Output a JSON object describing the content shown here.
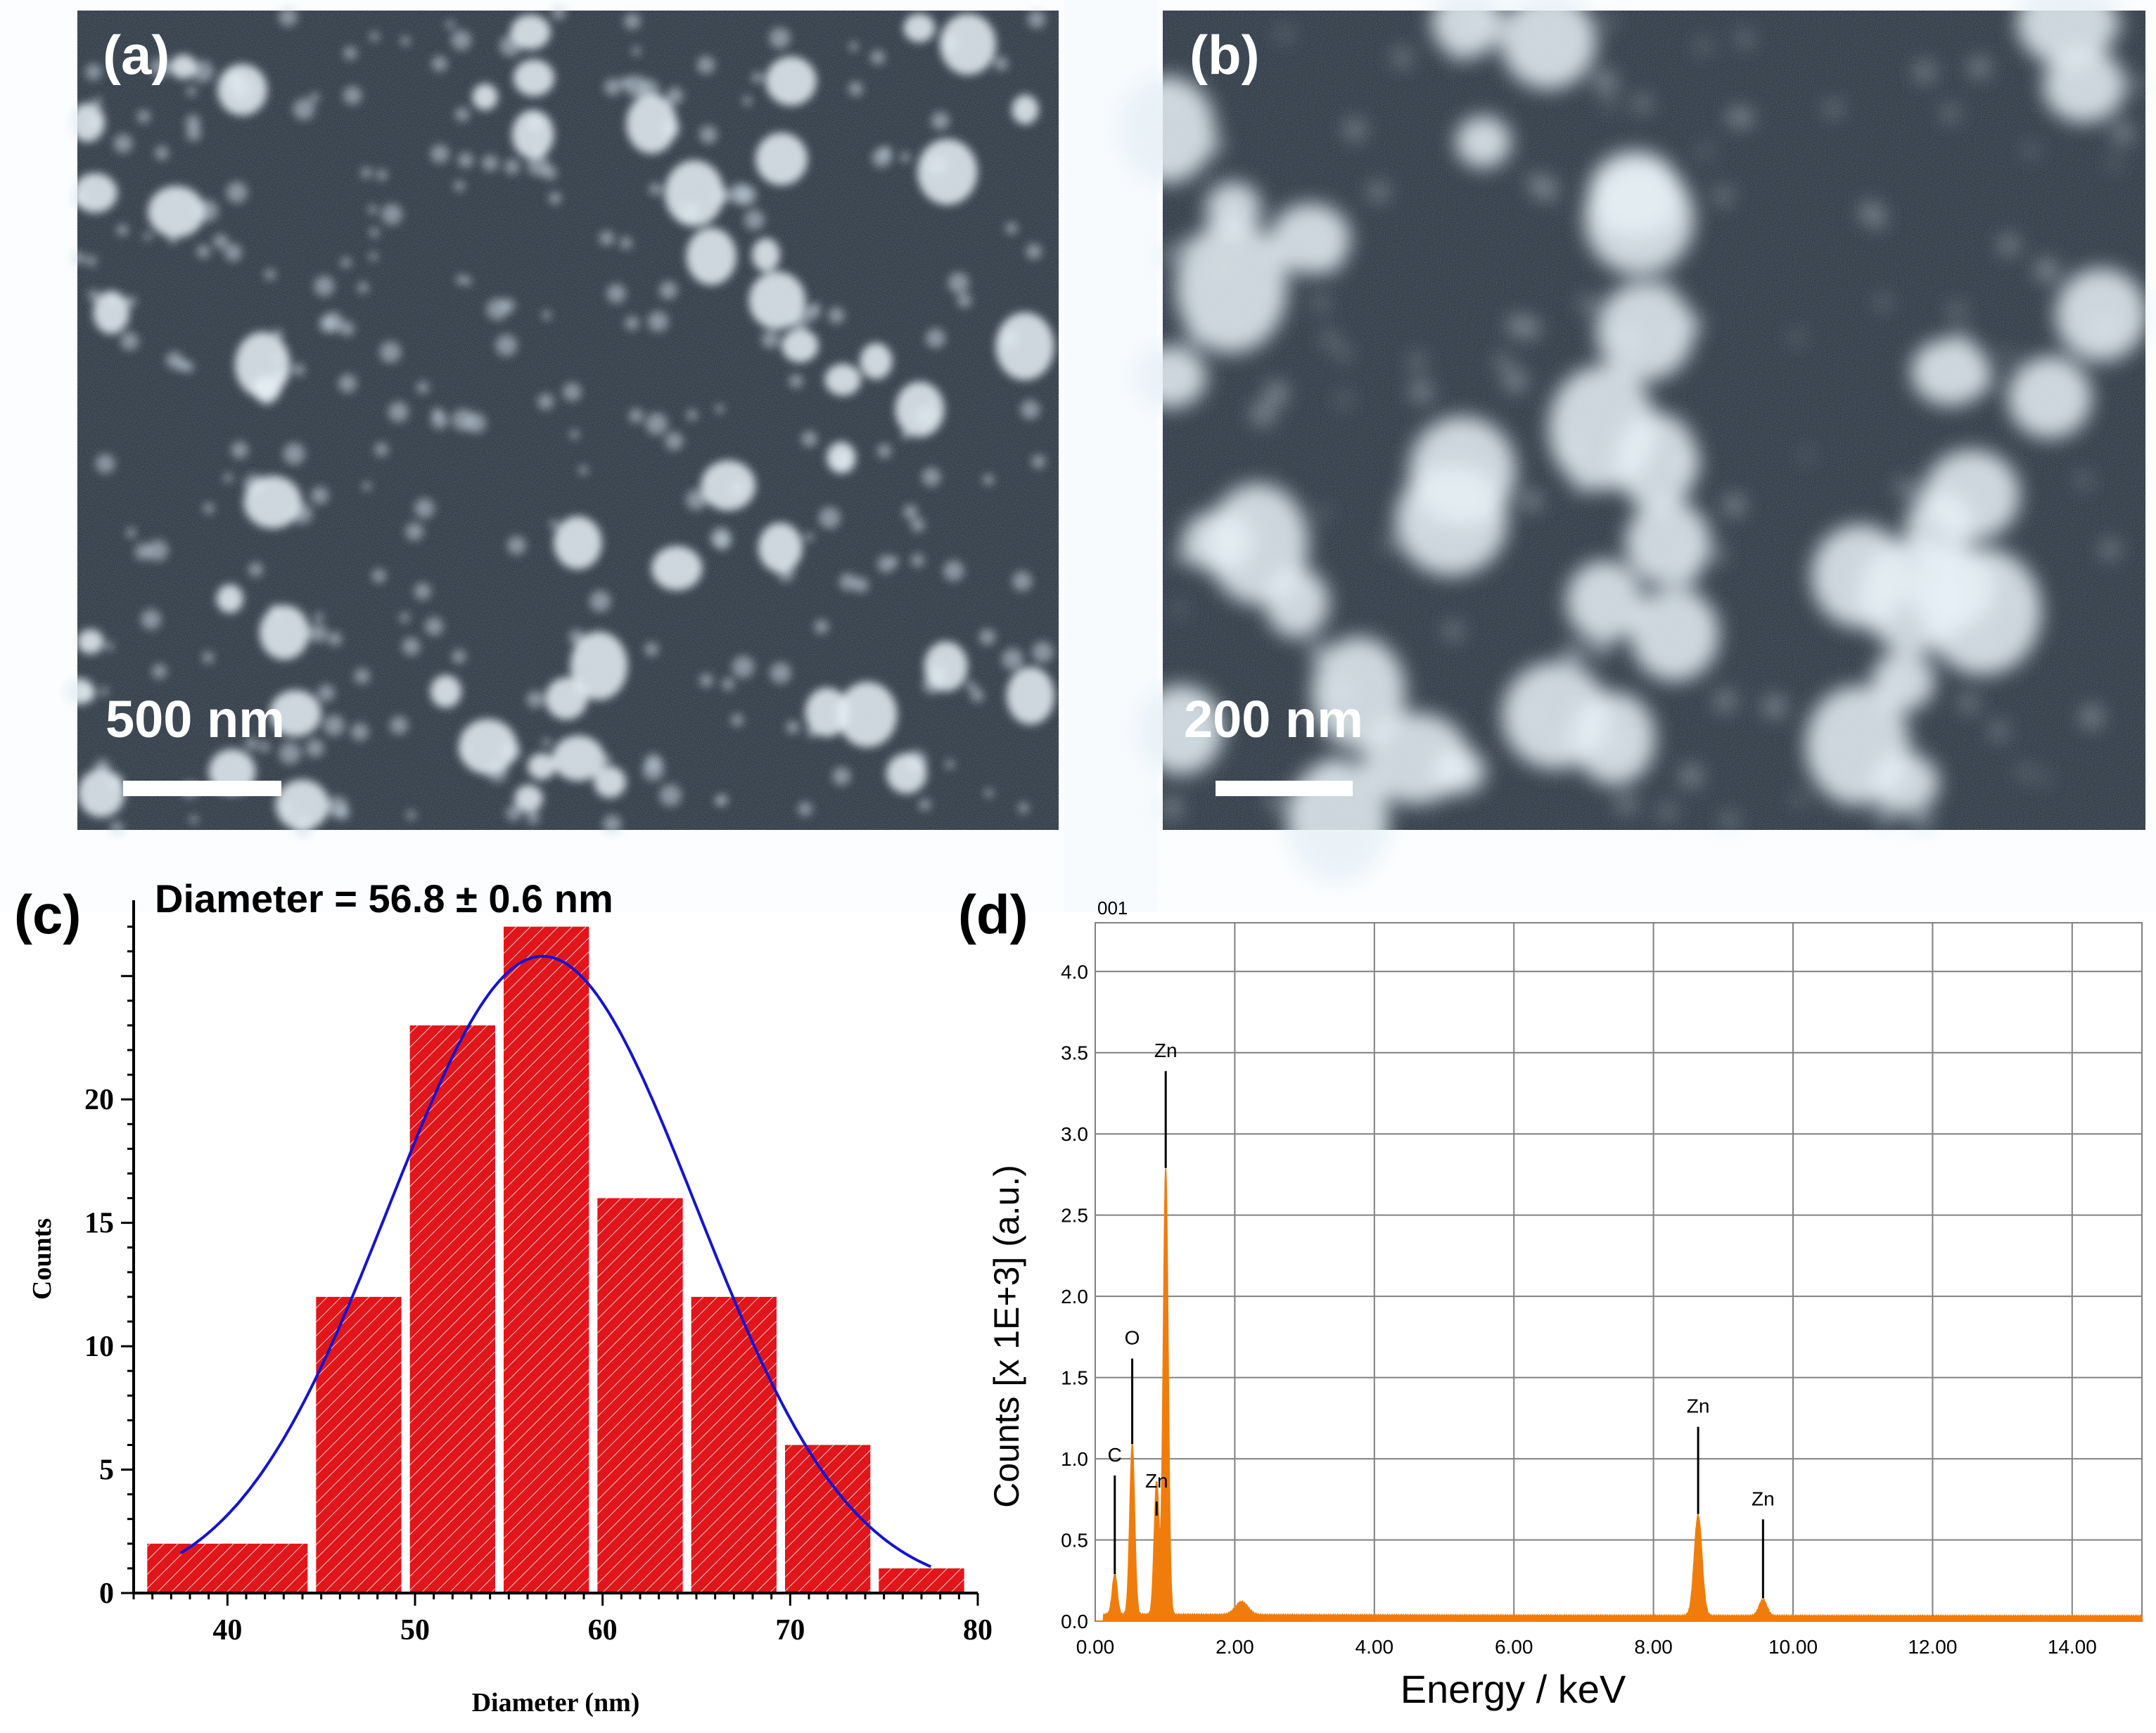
{
  "panels": {
    "a": {
      "letter": "(a)",
      "scale": "500 nm"
    },
    "b": {
      "letter": "(b)",
      "scale": "200 nm"
    },
    "c": {
      "letter": "(c)"
    },
    "d": {
      "letter": "(d)"
    }
  },
  "colors": {
    "sem_bg": "#1a2430",
    "sem_particle": "#e6f0f6",
    "hist_bar": "#e0161b",
    "fit_curve": "#1414d2",
    "eds_spectrum": "#f07c0c",
    "grid": "#808080"
  },
  "chart_data": [
    {
      "type": "bar",
      "panel": "c",
      "title": "Diameter = 56.8 ± 0.6 nm",
      "xlabel": "Diameter (nm)",
      "ylabel": "Counts",
      "xlim": [
        35,
        80
      ],
      "ylim": [
        0,
        27.5
      ],
      "x_ticks": [
        "40",
        "50",
        "60",
        "70",
        "80"
      ],
      "y_ticks": [
        "0",
        "5",
        "10",
        "15",
        "20"
      ],
      "bin_width": 5,
      "bins": [
        {
          "center": 38,
          "value": 2
        },
        {
          "center": 42,
          "value": 2
        },
        {
          "center": 47,
          "value": 12
        },
        {
          "center": 52,
          "value": 23
        },
        {
          "center": 57,
          "value": 27
        },
        {
          "center": 62,
          "value": 16
        },
        {
          "center": 67,
          "value": 12
        },
        {
          "center": 72,
          "value": 6
        },
        {
          "center": 77,
          "value": 1
        }
      ],
      "fit": {
        "type": "gaussian",
        "mean": 56.8,
        "peak": 25.8,
        "sigma": 8.2,
        "x_range": [
          37.5,
          77.5
        ]
      }
    },
    {
      "type": "line",
      "panel": "d",
      "header": "001",
      "xlabel": "Energy / keV",
      "ylabel": "Counts [x 1E+3] (a.u.)",
      "xlim": [
        0,
        15
      ],
      "ylim": [
        0,
        4.3
      ],
      "x_ticks": [
        "0.00",
        "2.00",
        "4.00",
        "6.00",
        "8.00",
        "10.00",
        "12.00",
        "14.00"
      ],
      "y_ticks": [
        "0.0",
        "0.5",
        "1.0",
        "1.5",
        "2.0",
        "2.5",
        "3.0",
        "3.5",
        "4.0"
      ],
      "peaks": [
        {
          "label": "C",
          "energy": 0.28,
          "height": 0.25
        },
        {
          "label": "O",
          "energy": 0.53,
          "height": 1.05
        },
        {
          "label": "Zn",
          "energy": 0.88,
          "height": 0.82
        },
        {
          "label": "Zn",
          "energy": 1.01,
          "height": 2.75
        },
        {
          "label": "",
          "energy": 2.1,
          "height": 0.08
        },
        {
          "label": "Zn",
          "energy": 8.64,
          "height": 0.62
        },
        {
          "label": "Zn",
          "energy": 9.57,
          "height": 0.1
        }
      ],
      "annotations": [
        {
          "text": "C",
          "energy": 0.28,
          "y": 0.94
        },
        {
          "text": "O",
          "energy": 0.53,
          "y": 1.66
        },
        {
          "text": "Zn",
          "energy": 0.88,
          "y": 0.78
        },
        {
          "text": "Zn",
          "energy": 1.01,
          "y": 3.43
        },
        {
          "text": "Zn",
          "energy": 8.64,
          "y": 1.24
        },
        {
          "text": "Zn",
          "energy": 9.57,
          "y": 0.67
        }
      ]
    }
  ]
}
